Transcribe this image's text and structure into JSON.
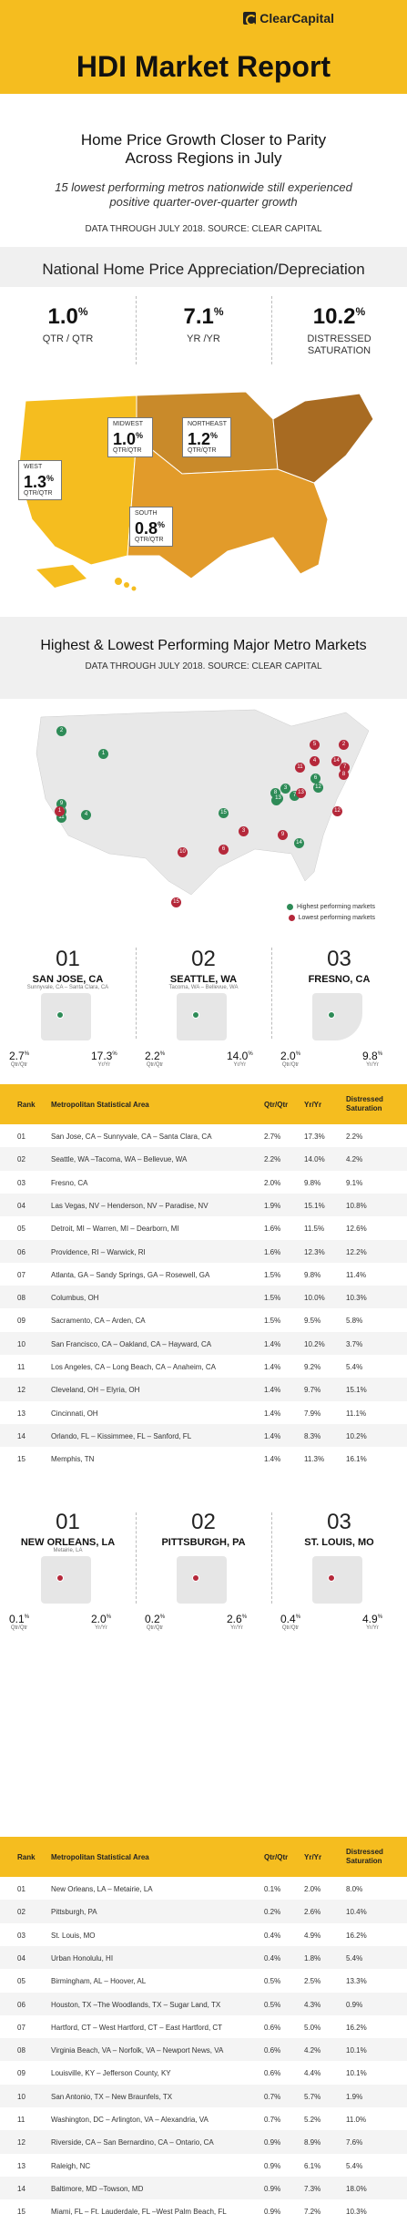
{
  "header": {
    "logo": "ClearCapital",
    "title": "HDI Market Report"
  },
  "headline": "Home Price Growth Closer to Parity Across Regions in July",
  "subhead": "15 lowest performing metros nationwide still experienced positive quarter-over-quarter growth",
  "source": "DATA THROUGH JULY 2018. SOURCE: CLEAR CAPITAL",
  "national": {
    "title": "National Home Price Appreciation/Depreciation",
    "stats": [
      {
        "value": "1.0",
        "unit": "%",
        "label": "QTR / QTR"
      },
      {
        "value": "7.1",
        "unit": "%",
        "label": "YR /YR"
      },
      {
        "value": "10.2",
        "unit": "%",
        "label": "DISTRESSED SATURATION"
      }
    ]
  },
  "regions": [
    {
      "name": "WEST",
      "value": "1.3",
      "unit": "%",
      "label": "QTR/QTR"
    },
    {
      "name": "MIDWEST",
      "value": "1.0",
      "unit": "%",
      "label": "QTR/QTR"
    },
    {
      "name": "NORTHEAST",
      "value": "1.2",
      "unit": "%",
      "label": "QTR/QTR"
    },
    {
      "name": "SOUTH",
      "value": "0.8",
      "unit": "%",
      "label": "QTR/QTR"
    }
  ],
  "metro_section": {
    "title": "Highest & Lowest Performing Major Metro Markets",
    "source": "DATA THROUGH JULY 2018. SOURCE: CLEAR CAPITAL",
    "legend_high": "Highest performing markets",
    "legend_low": "Lowest performing markets",
    "color_high": "#2e8b57",
    "color_low": "#b5283a"
  },
  "top3": [
    {
      "rank": "01",
      "name": "SAN JOSE, CA",
      "sub": "Sunnyvale, CA – Santa Clara, CA",
      "qtr": "2.7",
      "yr": "17.3"
    },
    {
      "rank": "02",
      "name": "SEATTLE, WA",
      "sub": "Tacoma, WA – Bellevue, WA",
      "qtr": "2.2",
      "yr": "14.0"
    },
    {
      "rank": "03",
      "name": "FRESNO, CA",
      "sub": "",
      "qtr": "2.0",
      "yr": "9.8"
    }
  ],
  "bottom3": [
    {
      "rank": "01",
      "name": "NEW ORLEANS, LA",
      "sub": "Metairie, LA",
      "qtr": "0.1",
      "yr": "2.0"
    },
    {
      "rank": "02",
      "name": "PITTSBURGH, PA",
      "sub": "",
      "qtr": "0.2",
      "yr": "2.6"
    },
    {
      "rank": "03",
      "name": "ST. LOUIS, MO",
      "sub": "",
      "qtr": "0.4",
      "yr": "4.9"
    }
  ],
  "labels": {
    "pct": "%",
    "qtr": "Qtr/Qtr",
    "yr": "Yr/Yr"
  },
  "table_headers": {
    "rank": "Rank",
    "msa": "Metropolitan Statistical Area",
    "qtr": "Qtr/Qtr",
    "yr": "Yr/Yr",
    "ds": "Distressed Saturation"
  },
  "top_table": [
    [
      "01",
      "San Jose, CA – Sunnyvale, CA – Santa Clara, CA",
      "2.7%",
      "17.3%",
      "2.2%"
    ],
    [
      "02",
      "Seattle, WA –Tacoma, WA – Bellevue, WA",
      "2.2%",
      "14.0%",
      "4.2%"
    ],
    [
      "03",
      "Fresno, CA",
      "2.0%",
      "9.8%",
      "9.1%"
    ],
    [
      "04",
      "Las Vegas, NV – Henderson, NV – Paradise, NV",
      "1.9%",
      "15.1%",
      "10.8%"
    ],
    [
      "05",
      "Detroit, MI – Warren, MI – Dearborn, MI",
      "1.6%",
      "11.5%",
      "12.6%"
    ],
    [
      "06",
      "Providence, RI – Warwick, RI",
      "1.6%",
      "12.3%",
      "12.2%"
    ],
    [
      "07",
      "Atlanta, GA – Sandy Springs, GA – Rosewell, GA",
      "1.5%",
      "9.8%",
      "11.4%"
    ],
    [
      "08",
      "Columbus, OH",
      "1.5%",
      "10.0%",
      "10.3%"
    ],
    [
      "09",
      "Sacramento, CA – Arden, CA",
      "1.5%",
      "9.5%",
      "5.8%"
    ],
    [
      "10",
      "San Francisco, CA – Oakland, CA – Hayward, CA",
      "1.4%",
      "10.2%",
      "3.7%"
    ],
    [
      "11",
      "Los Angeles, CA – Long Beach, CA – Anaheim, CA",
      "1.4%",
      "9.2%",
      "5.4%"
    ],
    [
      "12",
      "Cleveland, OH – Elyria, OH",
      "1.4%",
      "9.7%",
      "15.1%"
    ],
    [
      "13",
      "Cincinnati, OH",
      "1.4%",
      "7.9%",
      "11.1%"
    ],
    [
      "14",
      "Orlando, FL – Kissimmee, FL – Sanford, FL",
      "1.4%",
      "8.3%",
      "10.2%"
    ],
    [
      "15",
      "Memphis, TN",
      "1.4%",
      "11.3%",
      "16.1%"
    ]
  ],
  "bottom_table": [
    [
      "01",
      "New Orleans, LA – Metairie, LA",
      "0.1%",
      "2.0%",
      "8.0%"
    ],
    [
      "02",
      "Pittsburgh, PA",
      "0.2%",
      "2.6%",
      "10.4%"
    ],
    [
      "03",
      "St. Louis, MO",
      "0.4%",
      "4.9%",
      "16.2%"
    ],
    [
      "04",
      "Urban Honolulu, HI",
      "0.4%",
      "1.8%",
      "5.4%"
    ],
    [
      "05",
      "Birmingham, AL – Hoover, AL",
      "0.5%",
      "2.5%",
      "13.3%"
    ],
    [
      "06",
      "Houston, TX –The Woodlands, TX – Sugar Land, TX",
      "0.5%",
      "4.3%",
      "0.9%"
    ],
    [
      "07",
      "Hartford, CT – West Hartford, CT – East Hartford, CT",
      "0.6%",
      "5.0%",
      "16.2%"
    ],
    [
      "08",
      "Virginia Beach, VA – Norfolk, VA – Newport News, VA",
      "0.6%",
      "4.2%",
      "10.1%"
    ],
    [
      "09",
      "Louisville, KY – Jefferson County, KY",
      "0.6%",
      "4.4%",
      "10.1%"
    ],
    [
      "10",
      "San Antonio, TX – New Braunfels, TX",
      "0.7%",
      "5.7%",
      "1.9%"
    ],
    [
      "11",
      "Washington, DC – Arlington, VA – Alexandria, VA",
      "0.7%",
      "5.2%",
      "11.0%"
    ],
    [
      "12",
      "Riverside, CA – San Bernardino, CA – Ontario, CA",
      "0.9%",
      "8.9%",
      "7.6%"
    ],
    [
      "13",
      "Raleigh, NC",
      "0.9%",
      "6.1%",
      "5.4%"
    ],
    [
      "14",
      "Baltimore, MD –Towson, MD",
      "0.9%",
      "7.3%",
      "18.0%"
    ],
    [
      "15",
      "Miami, FL – Ft. Lauderdale, FL –West Palm Beach, FL",
      "0.9%",
      "7.2%",
      "10.3%"
    ]
  ],
  "map_markers_high": [
    "1",
    "2",
    "3",
    "4",
    "5",
    "6",
    "7",
    "8",
    "9",
    "10",
    "11",
    "12",
    "13",
    "14",
    "15"
  ],
  "map_markers_low": [
    "1",
    "2",
    "3",
    "4",
    "5",
    "6",
    "7",
    "8",
    "9",
    "10",
    "11",
    "12",
    "13",
    "14",
    "15"
  ]
}
